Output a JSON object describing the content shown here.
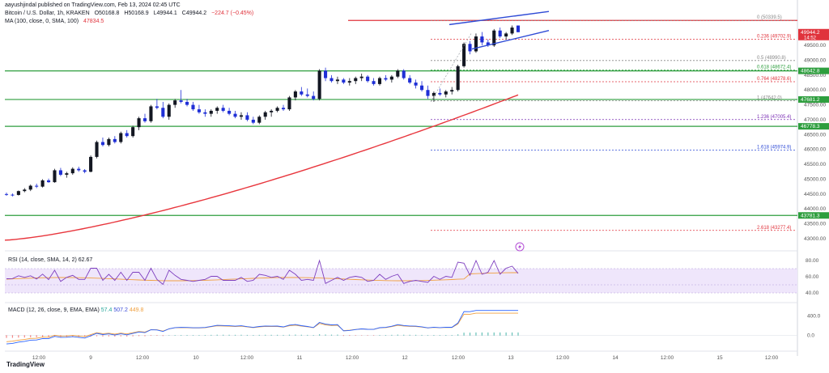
{
  "header": {
    "publisher_line": "aayushjindal published on TradingView.com, Feb 13, 2024 02:45 UTC",
    "symbol": "Bitcoin / U.S. Dollar, 1h, KRAKEN",
    "open": "O50168.8",
    "high": "H50168.9",
    "low": "L49944.1",
    "close": "C49944.2",
    "change": "−224.7 (−0.45%)",
    "ma_label": "MA (100, close, 0, SMA, 100)",
    "ma_value": "47834.5"
  },
  "rsi": {
    "label": "RSI (14, close, SMA, 14, 2)",
    "value": "62.67"
  },
  "macd": {
    "label": "MACD (12, 26, close, 9, EMA, EMA)",
    "v1": "57.4",
    "v2": "507.2",
    "v3": "449.8"
  },
  "footer": {
    "brand": "TradingView"
  },
  "colors": {
    "up": "#131722",
    "down": "#1f2fd6",
    "ma": "#e8363d",
    "support": "#2e9e3e",
    "fib_red": "#e0333c",
    "fib_purple": "#7b2fb5",
    "fib_blue": "#2f4bd6",
    "rsi_band": "#efe6fb"
  },
  "chart_data": {
    "type": "candlestick",
    "symbol": "BTCUSD",
    "interval": "1h",
    "ylim": [
      42700,
      50700
    ],
    "x_ticks": [
      "12:00",
      "9",
      "12:00",
      "10",
      "12:00",
      "11",
      "12:00",
      "12",
      "12:00",
      "13",
      "12:00",
      "14",
      "12:00",
      "15",
      "12:00"
    ],
    "price_ticks": [
      43000,
      43500,
      44000,
      44500,
      45000,
      45500,
      46000,
      46500,
      47000,
      47500,
      48000,
      48500,
      49000,
      49500
    ],
    "price_labels": [
      {
        "value": 49944.2,
        "text": "49944.2",
        "sub": "14:52",
        "color": "#e0333c"
      },
      {
        "value": 48642.8,
        "text": "48642.8",
        "color": "#2e9e3e"
      },
      {
        "value": 47681.2,
        "text": "47681.2",
        "color": "#2e9e3e"
      },
      {
        "value": 46778.3,
        "text": "46778.3",
        "color": "#2e9e3e"
      },
      {
        "value": 43781.3,
        "text": "43781.3",
        "color": "#2e9e3e"
      }
    ],
    "horizontal_levels": [
      {
        "value": 48642.8,
        "color": "#2e9e3e"
      },
      {
        "value": 47681.2,
        "color": "#2e9e3e"
      },
      {
        "value": 46778.3,
        "color": "#2e9e3e"
      },
      {
        "value": 43781.3,
        "color": "#2e9e3e"
      },
      {
        "value": 50339.5,
        "color": "#e0333c"
      }
    ],
    "fibonacci": [
      {
        "ratio": "0",
        "value": 50339.5,
        "label": "0 (50339.5)",
        "color": "#888888"
      },
      {
        "ratio": "0.236",
        "value": 49702.9,
        "label": "0.236 (49702.9)",
        "color": "#e0333c"
      },
      {
        "ratio": "0.5",
        "value": 48990.8,
        "label": "0.5 (48990.8)",
        "color": "#888888"
      },
      {
        "ratio": "0.618",
        "value": 48672.4,
        "label": "0.618 (48672.4)",
        "color": "#2e9e3e"
      },
      {
        "ratio": "0.764",
        "value": 48278.6,
        "label": "0.764 (48278.6)",
        "color": "#e0333c"
      },
      {
        "ratio": "1",
        "value": 47642.0,
        "label": "1 (47642.0)",
        "color": "#888888"
      },
      {
        "ratio": "1.236",
        "value": 47005.4,
        "label": "1.236 (47005.4)",
        "color": "#7b2fb5"
      },
      {
        "ratio": "1.618",
        "value": 45974.9,
        "label": "1.618 (45974.9)",
        "color": "#2f4bd6"
      },
      {
        "ratio": "2.618",
        "value": 43277.4,
        "label": "2.618 (43277.4)",
        "color": "#e0333c"
      }
    ],
    "candles": [
      [
        44500,
        44550,
        44440,
        44480
      ],
      [
        44480,
        44520,
        44420,
        44470
      ],
      [
        44470,
        44620,
        44450,
        44600
      ],
      [
        44600,
        44700,
        44560,
        44650
      ],
      [
        44650,
        44820,
        44600,
        44780
      ],
      [
        44780,
        44850,
        44700,
        44750
      ],
      [
        44750,
        45000,
        44720,
        44960
      ],
      [
        44960,
        45020,
        44880,
        44900
      ],
      [
        44900,
        45350,
        44880,
        45300
      ],
      [
        45300,
        45380,
        45100,
        45150
      ],
      [
        45150,
        45250,
        45050,
        45200
      ],
      [
        45200,
        45400,
        45150,
        45350
      ],
      [
        45350,
        45420,
        45250,
        45300
      ],
      [
        45300,
        45340,
        45200,
        45250
      ],
      [
        45250,
        45800,
        45230,
        45750
      ],
      [
        45750,
        46300,
        45700,
        46250
      ],
      [
        46250,
        46400,
        46100,
        46150
      ],
      [
        46150,
        46400,
        46100,
        46350
      ],
      [
        46350,
        46450,
        46200,
        46250
      ],
      [
        46250,
        46600,
        46200,
        46550
      ],
      [
        46550,
        46650,
        46400,
        46450
      ],
      [
        46450,
        46800,
        46400,
        46750
      ],
      [
        46750,
        47100,
        46650,
        47050
      ],
      [
        47050,
        47200,
        46900,
        46950
      ],
      [
        46950,
        47500,
        46900,
        47450
      ],
      [
        47450,
        47700,
        47350,
        47400
      ],
      [
        47400,
        47600,
        47050,
        47100
      ],
      [
        47100,
        47550,
        47000,
        47500
      ],
      [
        47500,
        47700,
        47400,
        47650
      ],
      [
        47650,
        48000,
        47550,
        47600
      ],
      [
        47600,
        47700,
        47450,
        47500
      ],
      [
        47500,
        47600,
        47300,
        47350
      ],
      [
        47350,
        47500,
        47200,
        47250
      ],
      [
        47250,
        47350,
        47100,
        47200
      ],
      [
        47200,
        47350,
        47100,
        47300
      ],
      [
        47300,
        47450,
        47200,
        47400
      ],
      [
        47400,
        47500,
        47250,
        47300
      ],
      [
        47300,
        47400,
        47150,
        47200
      ],
      [
        47200,
        47300,
        47050,
        47100
      ],
      [
        47100,
        47250,
        47000,
        47150
      ],
      [
        47150,
        47250,
        46950,
        47000
      ],
      [
        47000,
        47100,
        46850,
        46900
      ],
      [
        46900,
        47150,
        46850,
        47100
      ],
      [
        47100,
        47300,
        47000,
        47250
      ],
      [
        47250,
        47350,
        47100,
        47300
      ],
      [
        47300,
        47450,
        47250,
        47400
      ],
      [
        47400,
        47500,
        47300,
        47350
      ],
      [
        47350,
        47800,
        47300,
        47750
      ],
      [
        47750,
        48000,
        47650,
        47950
      ],
      [
        47950,
        48100,
        47800,
        47850
      ],
      [
        47850,
        48050,
        47750,
        47800
      ],
      [
        47800,
        47950,
        47650,
        47700
      ],
      [
        47700,
        48700,
        47650,
        48650
      ],
      [
        48650,
        48750,
        48300,
        48400
      ],
      [
        48400,
        48500,
        48250,
        48300
      ],
      [
        48300,
        48450,
        48200,
        48350
      ],
      [
        48350,
        48400,
        48200,
        48250
      ],
      [
        48250,
        48400,
        48150,
        48300
      ],
      [
        48300,
        48450,
        48200,
        48400
      ],
      [
        48400,
        48550,
        48300,
        48450
      ],
      [
        48450,
        48500,
        48250,
        48300
      ],
      [
        48300,
        48400,
        48150,
        48200
      ],
      [
        48200,
        48450,
        48150,
        48400
      ],
      [
        48400,
        48500,
        48300,
        48350
      ],
      [
        48350,
        48500,
        48250,
        48450
      ],
      [
        48450,
        48700,
        48400,
        48650
      ],
      [
        48650,
        48700,
        48350,
        48400
      ],
      [
        48400,
        48500,
        48200,
        48250
      ],
      [
        48250,
        48350,
        48050,
        48150
      ],
      [
        48150,
        48300,
        47950,
        48000
      ],
      [
        48000,
        48150,
        47700,
        47800
      ],
      [
        47800,
        47950,
        47600,
        47900
      ],
      [
        47900,
        48050,
        47800,
        47850
      ],
      [
        47850,
        48000,
        47750,
        47950
      ],
      [
        47950,
        48100,
        47850,
        48000
      ],
      [
        48000,
        48850,
        47950,
        48800
      ],
      [
        48800,
        49600,
        48750,
        49550
      ],
      [
        49550,
        49650,
        49200,
        49300
      ],
      [
        49300,
        49900,
        49250,
        49800
      ],
      [
        49800,
        49950,
        49500,
        49600
      ],
      [
        49600,
        49700,
        49450,
        49500
      ],
      [
        49500,
        50050,
        49450,
        50000
      ],
      [
        50000,
        50100,
        49750,
        49800
      ],
      [
        49800,
        49950,
        49700,
        49900
      ],
      [
        49900,
        50168,
        49850,
        50100
      ],
      [
        50168,
        50169,
        49944,
        49944
      ]
    ],
    "ma100": {
      "start": 42950,
      "end": 47834.5
    },
    "rsi_ylim": [
      30,
      90
    ],
    "rsi_ticks": [
      40,
      60,
      80
    ],
    "rsi_band": [
      40,
      70
    ],
    "macd_ylim": [
      -300,
      650
    ],
    "macd_ticks": [
      0,
      400
    ]
  }
}
